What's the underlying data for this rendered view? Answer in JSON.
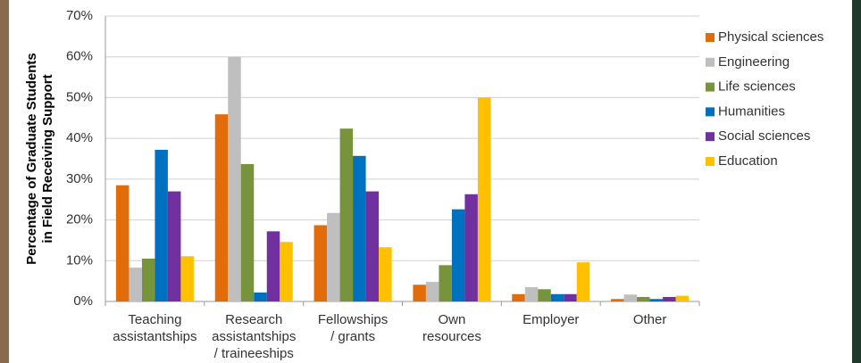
{
  "chart_data": {
    "type": "bar",
    "y_label": [
      "Percentage of Graduate Students",
      "in Field Receiving Support"
    ],
    "categories": [
      [
        "Teaching",
        "assistantships"
      ],
      [
        "Research",
        "assistantships",
        "/ traineeships"
      ],
      [
        "Fellowships",
        "/ grants"
      ],
      [
        "Own",
        "resources"
      ],
      [
        "Employer"
      ],
      [
        "Other"
      ]
    ],
    "series": [
      {
        "name": "Physical sciences",
        "color": "#e36c0a",
        "values": [
          28.5,
          45.9,
          18.7,
          4.1,
          1.8,
          0.6
        ]
      },
      {
        "name": "Engineering",
        "color": "#bfbfbf",
        "values": [
          8.3,
          60,
          21.7,
          4.8,
          3.5,
          1.7
        ]
      },
      {
        "name": "Life sciences",
        "color": "#77933c",
        "values": [
          10.5,
          33.7,
          42.4,
          8.9,
          3.0,
          1.1
        ]
      },
      {
        "name": "Humanities",
        "color": "#0070c0",
        "values": [
          37.2,
          2.2,
          35.7,
          22.6,
          1.8,
          0.6
        ]
      },
      {
        "name": "Social sciences",
        "color": "#7030a0",
        "values": [
          27,
          17.2,
          27,
          26.3,
          1.8,
          1.1
        ]
      },
      {
        "name": "Education",
        "color": "#ffc000",
        "values": [
          11.1,
          14.6,
          13.3,
          50,
          9.6,
          1.4
        ]
      }
    ],
    "ylim": [
      0,
      70
    ],
    "yticks": [
      {
        "value": 0,
        "label": "0%"
      },
      {
        "value": 10,
        "label": "10%"
      },
      {
        "value": 20,
        "label": "20%"
      },
      {
        "value": 30,
        "label": "30%"
      },
      {
        "value": 40,
        "label": "40%"
      },
      {
        "value": 50,
        "label": "50%"
      },
      {
        "value": 60,
        "label": "60%"
      },
      {
        "value": 70,
        "label": "70%"
      }
    ],
    "grid": true
  }
}
